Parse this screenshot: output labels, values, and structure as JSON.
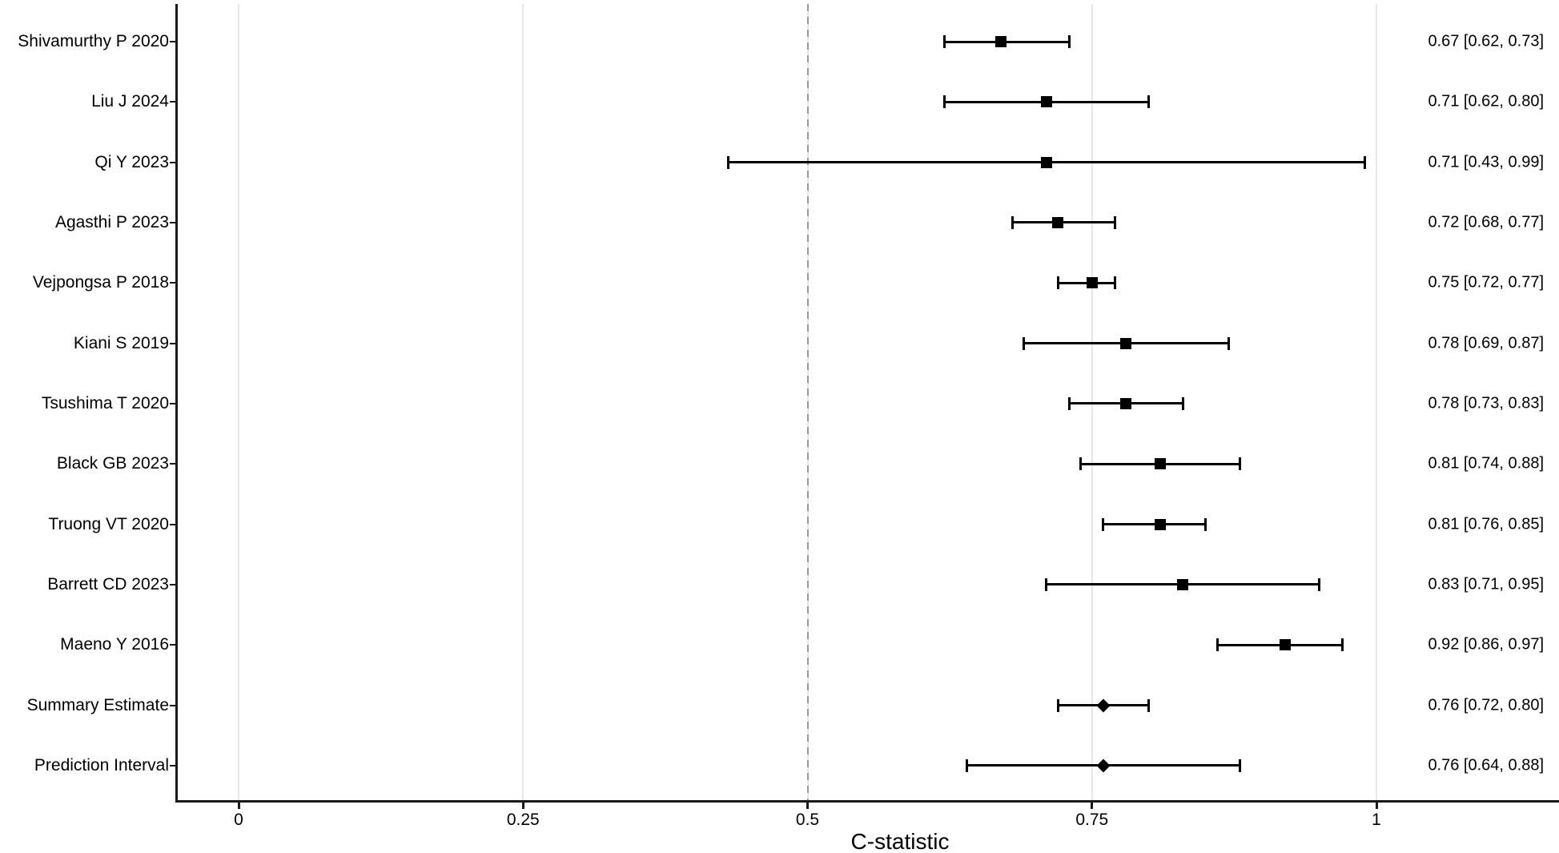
{
  "chart_data": {
    "type": "scatter",
    "variant": "forest-plot",
    "title": "",
    "xlabel": "C-statistic",
    "ylabel": "",
    "xlim": [
      -0.055,
      1.16
    ],
    "grid": "vertical-major-only",
    "legend": "none",
    "x_tick_values": [
      0,
      0.25,
      0.5,
      0.75,
      1
    ],
    "x_tick_labels": [
      "0",
      "0.25",
      "0.5",
      "0.75",
      "1"
    ],
    "reference_line": {
      "x": 0.5,
      "style": "dashed",
      "color": "#999999"
    },
    "rows": [
      {
        "label": "Shivamurthy P 2020",
        "estimate": 0.67,
        "ci_low": 0.62,
        "ci_high": 0.73,
        "annotation": "0.67 [0.62, 0.73]",
        "marker": "square"
      },
      {
        "label": "Liu J 2024",
        "estimate": 0.71,
        "ci_low": 0.62,
        "ci_high": 0.8,
        "annotation": "0.71 [0.62, 0.80]",
        "marker": "square"
      },
      {
        "label": "Qi Y 2023",
        "estimate": 0.71,
        "ci_low": 0.43,
        "ci_high": 0.99,
        "annotation": "0.71 [0.43, 0.99]",
        "marker": "square"
      },
      {
        "label": "Agasthi P 2023",
        "estimate": 0.72,
        "ci_low": 0.68,
        "ci_high": 0.77,
        "annotation": "0.72 [0.68, 0.77]",
        "marker": "square"
      },
      {
        "label": "Vejpongsa P 2018",
        "estimate": 0.75,
        "ci_low": 0.72,
        "ci_high": 0.77,
        "annotation": "0.75 [0.72, 0.77]",
        "marker": "square"
      },
      {
        "label": "Kiani S 2019",
        "estimate": 0.78,
        "ci_low": 0.69,
        "ci_high": 0.87,
        "annotation": "0.78 [0.69, 0.87]",
        "marker": "square"
      },
      {
        "label": "Tsushima T 2020",
        "estimate": 0.78,
        "ci_low": 0.73,
        "ci_high": 0.83,
        "annotation": "0.78 [0.73, 0.83]",
        "marker": "square"
      },
      {
        "label": "Black GB 2023",
        "estimate": 0.81,
        "ci_low": 0.74,
        "ci_high": 0.88,
        "annotation": "0.81 [0.74, 0.88]",
        "marker": "square"
      },
      {
        "label": "Truong VT 2020",
        "estimate": 0.81,
        "ci_low": 0.76,
        "ci_high": 0.85,
        "annotation": "0.81 [0.76, 0.85]",
        "marker": "square"
      },
      {
        "label": "Barrett CD 2023",
        "estimate": 0.83,
        "ci_low": 0.71,
        "ci_high": 0.95,
        "annotation": "0.83 [0.71, 0.95]",
        "marker": "square"
      },
      {
        "label": "Maeno Y 2016",
        "estimate": 0.92,
        "ci_low": 0.86,
        "ci_high": 0.97,
        "annotation": "0.92 [0.86, 0.97]",
        "marker": "square"
      },
      {
        "label": "Summary Estimate",
        "estimate": 0.76,
        "ci_low": 0.72,
        "ci_high": 0.8,
        "annotation": "0.76 [0.72, 0.80]",
        "marker": "diamond"
      },
      {
        "label": "Prediction Interval",
        "estimate": 0.76,
        "ci_low": 0.64,
        "ci_high": 0.88,
        "annotation": "0.76 [0.64, 0.88]",
        "marker": "diamond"
      }
    ],
    "colors": {
      "marker": "#000000",
      "text": "#000000",
      "axis": "#1a1a1a",
      "gridline": "#e7e7e7",
      "reference_line": "#999999",
      "background": "#ffffff"
    }
  }
}
